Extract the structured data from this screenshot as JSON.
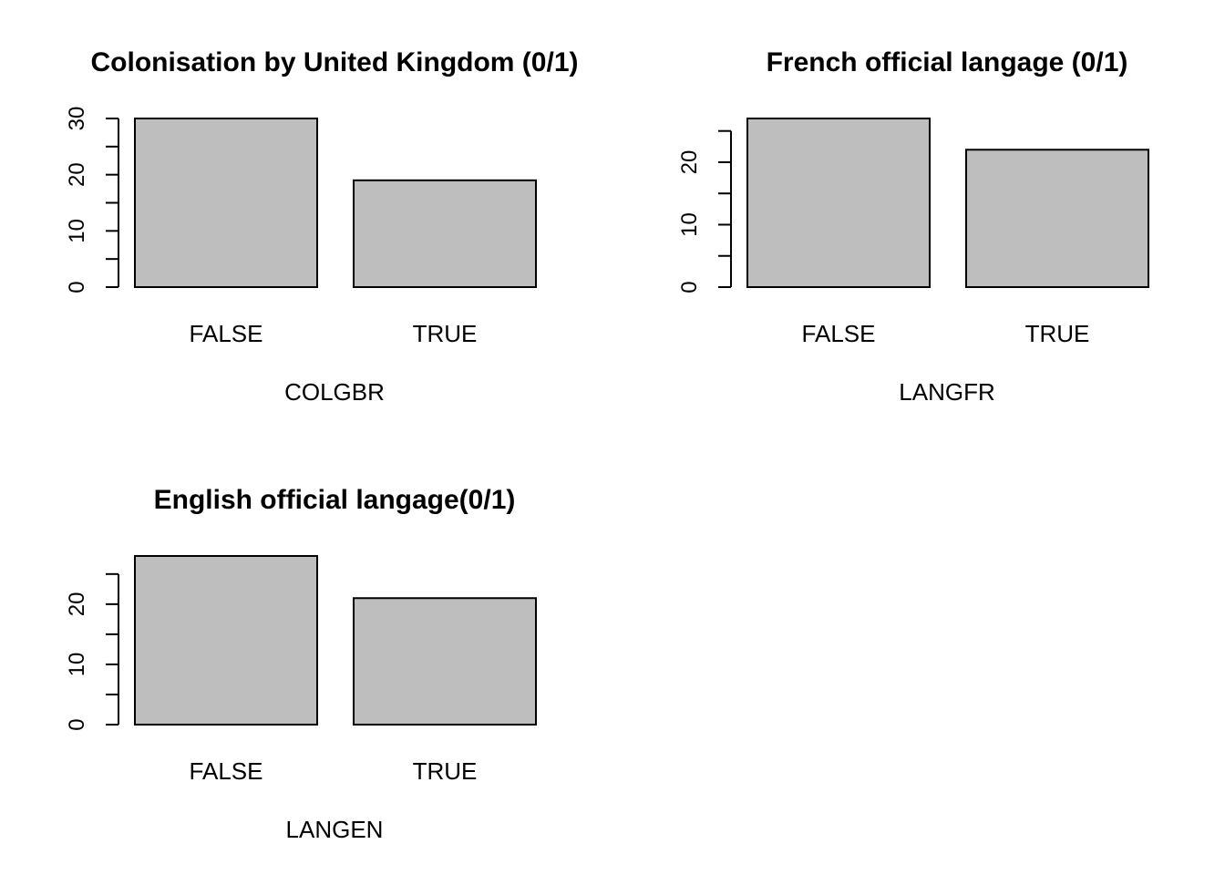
{
  "chart_data": [
    {
      "type": "bar",
      "title": "Colonisation by United Kingdom (0/1)",
      "xlabel": "COLGBR",
      "ylabel": "",
      "categories": [
        "FALSE",
        "TRUE"
      ],
      "values": [
        30,
        19
      ],
      "ylim": [
        0,
        30
      ],
      "yticks": [
        0,
        10,
        20,
        30
      ],
      "grid": false
    },
    {
      "type": "bar",
      "title": "French official langage (0/1)",
      "xlabel": "LANGFR",
      "ylabel": "",
      "categories": [
        "FALSE",
        "TRUE"
      ],
      "values": [
        27,
        22
      ],
      "ylim": [
        0,
        25
      ],
      "yticks": [
        0,
        10,
        20
      ],
      "grid": false
    },
    {
      "type": "bar",
      "title": "English official langage(0/1)",
      "xlabel": "LANGEN",
      "ylabel": "",
      "categories": [
        "FALSE",
        "TRUE"
      ],
      "values": [
        28,
        21
      ],
      "ylim": [
        0,
        25
      ],
      "yticks": [
        0,
        10,
        20
      ],
      "grid": false
    }
  ],
  "colors": {
    "bar_fill": "#bebebe",
    "bar_stroke": "#000000",
    "background": "#ffffff"
  }
}
